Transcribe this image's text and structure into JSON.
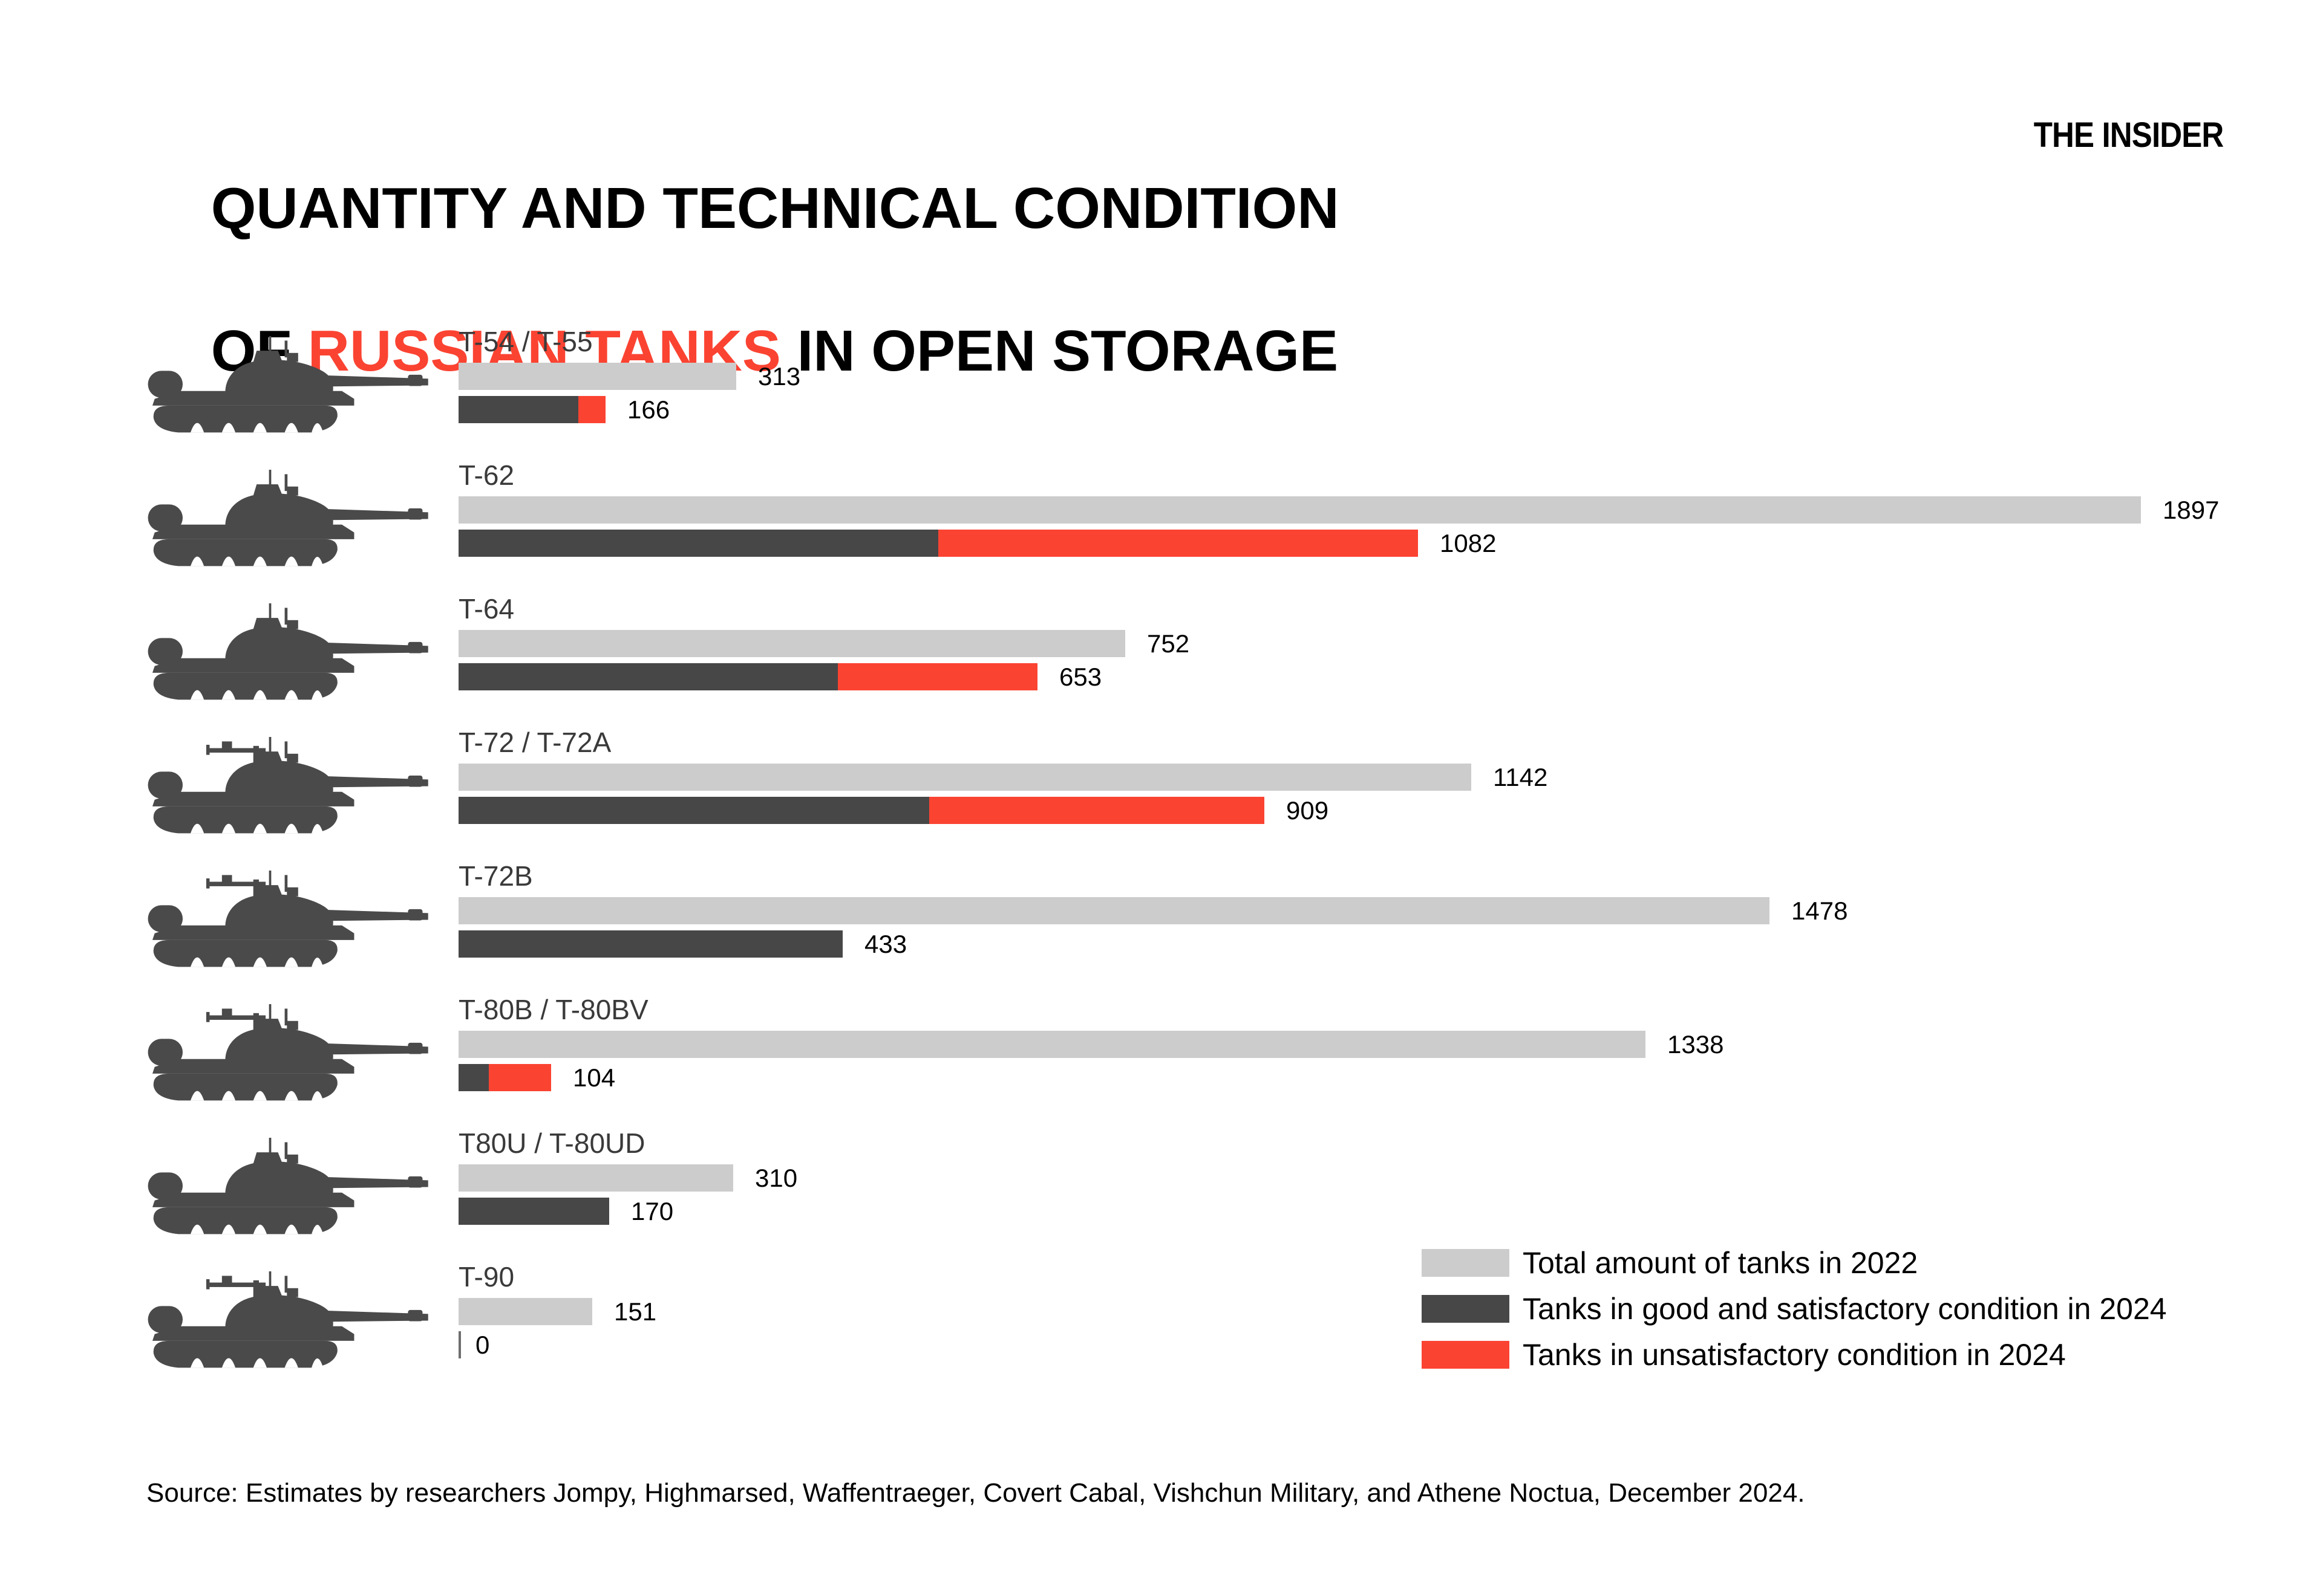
{
  "header": {
    "title_line1": "QUANTITY AND TECHNICAL CONDITION",
    "title_line2_pre": "OF ",
    "title_line2_red": "RUSSIAN TANKS",
    "title_line2_post": " IN OPEN STORAGE",
    "logo": "THE INSIDER"
  },
  "colors": {
    "total": "#cccccc",
    "good": "#474747",
    "unsat": "#fb4332",
    "accent_red": "#fb4332",
    "icon": "#4a4a4a"
  },
  "legend": {
    "items": [
      {
        "key": "total",
        "label": "Total amount of tanks in 2022"
      },
      {
        "key": "good",
        "label": "Tanks in good and satisfactory condition in 2024"
      },
      {
        "key": "unsat",
        "label": "Tanks in unsatisfactory condition in 2024"
      }
    ]
  },
  "chart_data": {
    "type": "bar",
    "orientation": "horizontal",
    "title": "QUANTITY AND TECHNICAL CONDITION OF RUSSIAN TANKS IN OPEN STORAGE",
    "categories": [
      "T-54 / T-55",
      "T-62",
      "T-64",
      "T-72 / T-72A",
      "T-72B",
      "T-80B / T-80BV",
      "T80U / T-80UD",
      "T-90"
    ],
    "series": [
      {
        "name": "Total amount of tanks in 2022",
        "values": [
          313,
          1897,
          752,
          1142,
          1478,
          1338,
          310,
          151
        ]
      },
      {
        "name": "Tanks in good and satisfactory condition in 2024 (estimated from segment widths)",
        "values": [
          135,
          541,
          428,
          531,
          433,
          34,
          170,
          0
        ]
      },
      {
        "name": "Tanks in unsatisfactory condition in 2024 (estimated from segment widths)",
        "values": [
          31,
          541,
          225,
          378,
          0,
          70,
          0,
          0
        ]
      }
    ],
    "value_labels": {
      "total_2022": [
        313,
        1897,
        752,
        1142,
        1478,
        1338,
        310,
        151
      ],
      "condition_2024": [
        166,
        1082,
        653,
        909,
        433,
        104,
        170,
        0
      ]
    },
    "x_max": 1897,
    "grid": false,
    "legend_position": "bottom-right"
  },
  "footer": {
    "source": "Source: Estimates by researchers Jompy, Highmarsed, Waffentraeger, Covert Cabal, Vishchun Military, and Athene Noctua, December 2024."
  }
}
